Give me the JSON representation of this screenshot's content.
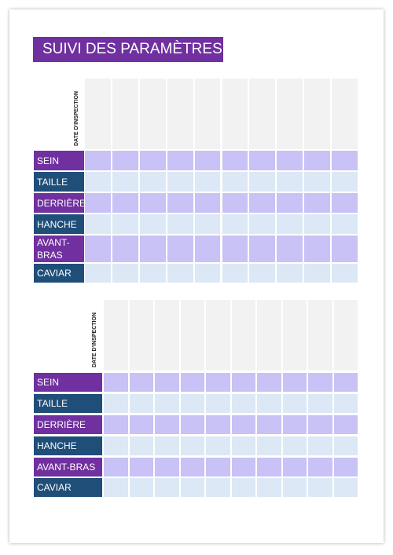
{
  "header": {
    "title": "SUIVI DES PARAMÈTRES"
  },
  "tables": [
    {
      "date_label": "DATE D'INSPECTION",
      "rows": [
        "SEIN",
        "TAILLE",
        "DERRIÈRE",
        "HANCHE",
        "AVANT-BRAS",
        "CAVIAR"
      ]
    },
    {
      "date_label": "DATE D'INSPECTION",
      "rows": [
        "SEIN",
        "TAILLE",
        "DERRIÈRE",
        "HANCHE",
        "AVANT-BRAS",
        "CAVIAR"
      ]
    }
  ]
}
